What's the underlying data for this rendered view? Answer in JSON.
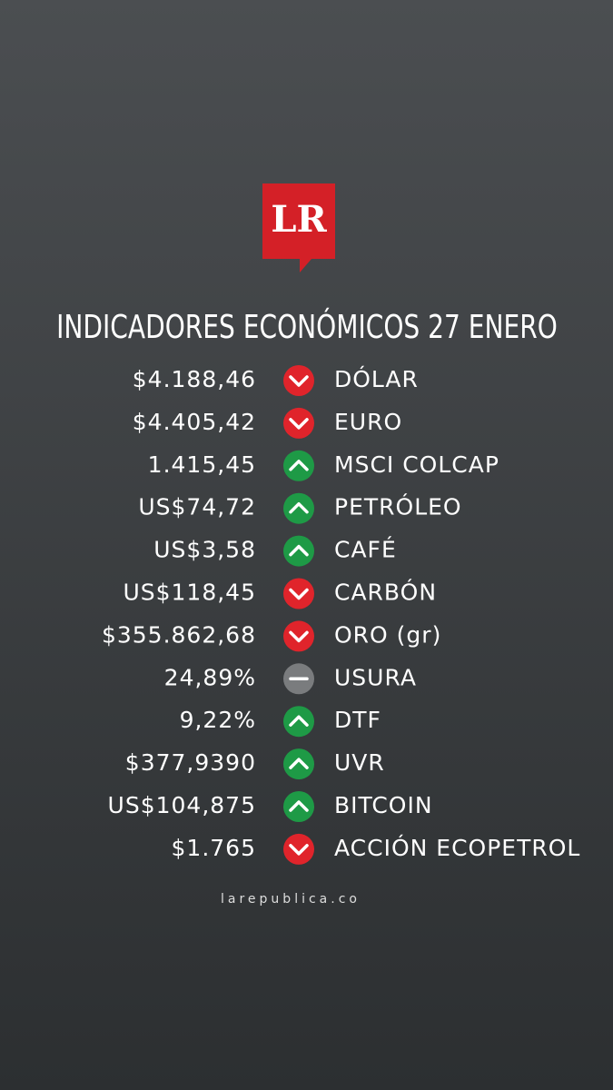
{
  "logo": "LR",
  "title": "INDICADORES ECONÓMICOS 27 ENERO",
  "rows": [
    {
      "value": "$4.188,46",
      "trend": "down",
      "name": "DÓLAR"
    },
    {
      "value": "$4.405,42",
      "trend": "down",
      "name": "EURO"
    },
    {
      "value": "1.415,45",
      "trend": "up",
      "name": "MSCI COLCAP"
    },
    {
      "value": "US$74,72",
      "trend": "up",
      "name": "PETRÓLEO"
    },
    {
      "value": "US$3,58",
      "trend": "up",
      "name": "CAFÉ"
    },
    {
      "value": "US$118,45",
      "trend": "down",
      "name": "CARBÓN"
    },
    {
      "value": "$355.862,68",
      "trend": "down",
      "name": "ORO (gr)"
    },
    {
      "value": "24,89%",
      "trend": "flat",
      "name": "USURA"
    },
    {
      "value": "9,22%",
      "trend": "up",
      "name": "DTF"
    },
    {
      "value": "$377,9390",
      "trend": "up",
      "name": "UVR"
    },
    {
      "value": "US$104,875",
      "trend": "up",
      "name": "BITCOIN"
    },
    {
      "value": "$1.765",
      "trend": "down",
      "name": "ACCIÓN ECOPETROL"
    }
  ],
  "footer": "larepublica.co"
}
